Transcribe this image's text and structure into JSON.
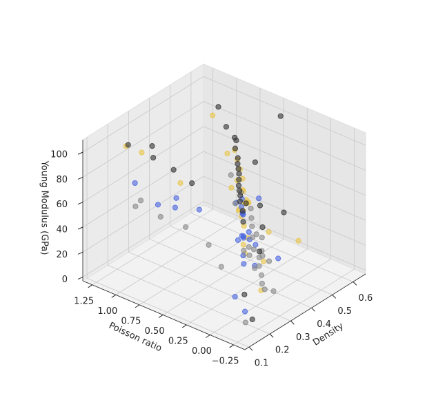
{
  "chart_data": {
    "type": "scatter3d",
    "xlabel": "Density",
    "ylabel": "Poisson ratio",
    "zlabel": "Young Modulus (GPa)",
    "xlim": [
      0.08,
      0.66
    ],
    "xticks": [
      0.1,
      0.2,
      0.3,
      0.4,
      0.5,
      0.6
    ],
    "ylim": [
      -0.37,
      1.35
    ],
    "yticks": [
      {
        "value": -0.25,
        "label": "−0.25"
      },
      {
        "value": 0,
        "label": "0.00"
      },
      {
        "value": 0.25,
        "label": "0.25"
      },
      {
        "value": 0.5,
        "label": "0.50"
      },
      {
        "value": 0.75,
        "label": "0.75"
      },
      {
        "value": 1,
        "label": "1.00"
      },
      {
        "value": 1.25,
        "label": "1.25"
      }
    ],
    "zlim": [
      -3,
      110
    ],
    "zticks": [
      0,
      20,
      40,
      60,
      80,
      100
    ],
    "grid": true,
    "series": [
      {
        "color": "#e8c547",
        "x": [
          0.38,
          0.4,
          0.42,
          0.36,
          0.44,
          0.39,
          0.41,
          0.37,
          0.43,
          0.35,
          0.45,
          0.4,
          0.38,
          0.42,
          0.46,
          0.34,
          0.39,
          0.41,
          0.33,
          0.47,
          0.3,
          0.25,
          0.22,
          0.55,
          0.5,
          0.36,
          0.43,
          0.4,
          0.48,
          0.28
        ],
        "y": [
          0.35,
          0.3,
          0.4,
          0.25,
          0.45,
          0.38,
          0.32,
          0.28,
          0.42,
          0.2,
          0.5,
          0.36,
          0.33,
          0.37,
          0.55,
          0.22,
          0.3,
          0.44,
          0.18,
          0.6,
          0.8,
          1.1,
          1.2,
          0.1,
          0.9,
          0.05,
          0.15,
          0.48,
          0.7,
          -0.1
        ],
        "z": [
          55,
          60,
          48,
          65,
          70,
          52,
          58,
          45,
          62,
          40,
          75,
          68,
          50,
          56,
          80,
          35,
          63,
          72,
          30,
          85,
          70,
          90,
          95,
          20,
          100,
          25,
          38,
          66,
          78,
          15
        ]
      },
      {
        "color": "#4a66e0",
        "x": [
          0.35,
          0.38,
          0.4,
          0.33,
          0.42,
          0.36,
          0.39,
          0.44,
          0.31,
          0.37,
          0.41,
          0.34,
          0.46,
          0.3,
          0.28,
          0.26,
          0.24,
          0.48,
          0.5,
          0.43,
          0.2,
          0.18,
          0.32,
          0.45,
          0.38
        ],
        "y": [
          0.3,
          0.25,
          0.35,
          0.2,
          0.4,
          0.28,
          0.33,
          0.45,
          0.15,
          0.22,
          0.38,
          0.1,
          0.5,
          0.6,
          0.8,
          0.95,
          1.15,
          0.55,
          0.65,
          0.05,
          0.0,
          -0.15,
          0.9,
          0.3,
          0.18
        ],
        "z": [
          35,
          40,
          30,
          28,
          45,
          38,
          33,
          42,
          25,
          36,
          48,
          22,
          50,
          55,
          60,
          52,
          65,
          40,
          38,
          20,
          15,
          10,
          45,
          58,
          32
        ]
      },
      {
        "color": "#888888",
        "x": [
          0.36,
          0.38,
          0.4,
          0.42,
          0.34,
          0.39,
          0.41,
          0.37,
          0.43,
          0.35,
          0.44,
          0.33,
          0.46,
          0.32,
          0.3,
          0.28,
          0.25,
          0.22,
          0.48,
          0.5,
          0.52,
          0.4,
          0.38,
          0.36,
          0.2,
          0.16,
          0.27,
          0.45,
          0.42,
          0.34
        ],
        "y": [
          0.2,
          0.25,
          0.15,
          0.3,
          0.1,
          0.22,
          0.18,
          0.12,
          0.28,
          0.05,
          0.35,
          0.0,
          0.4,
          -0.05,
          0.5,
          0.7,
          0.9,
          1.1,
          0.45,
          0.6,
          0.75,
          0.08,
          0.14,
          0.26,
          1.0,
          -0.2,
          0.3,
          0.55,
          0.2,
          -0.1
        ],
        "z": [
          25,
          28,
          22,
          30,
          20,
          26,
          24,
          18,
          32,
          15,
          35,
          12,
          38,
          10,
          30,
          40,
          45,
          50,
          42,
          48,
          55,
          20,
          23,
          27,
          60,
          5,
          22,
          46,
          33,
          8
        ]
      },
      {
        "color": "#333333",
        "x": [
          0.4,
          0.42,
          0.38,
          0.44,
          0.36,
          0.41,
          0.39,
          0.45,
          0.35,
          0.43,
          0.37,
          0.47,
          0.33,
          0.31,
          0.29,
          0.26,
          0.23,
          0.5,
          0.52,
          0.55,
          0.48,
          0.4,
          0.38,
          0.2,
          0.17,
          0.34,
          0.46,
          0.42,
          0.3,
          0.6
        ],
        "y": [
          0.4,
          0.45,
          0.35,
          0.5,
          0.3,
          0.42,
          0.38,
          0.55,
          0.25,
          0.48,
          0.32,
          0.6,
          0.2,
          0.7,
          0.85,
          1.0,
          1.2,
          0.65,
          0.8,
          0.95,
          0.1,
          0.15,
          0.28,
          -0.1,
          -0.25,
          0.05,
          0.36,
          0.22,
          1.1,
          0.4
        ],
        "z": [
          75,
          80,
          70,
          85,
          65,
          78,
          72,
          90,
          60,
          82,
          68,
          95,
          55,
          72,
          80,
          88,
          95,
          88,
          92,
          100,
          50,
          45,
          62,
          20,
          8,
          35,
          84,
          58,
          90,
          105
        ]
      }
    ]
  }
}
